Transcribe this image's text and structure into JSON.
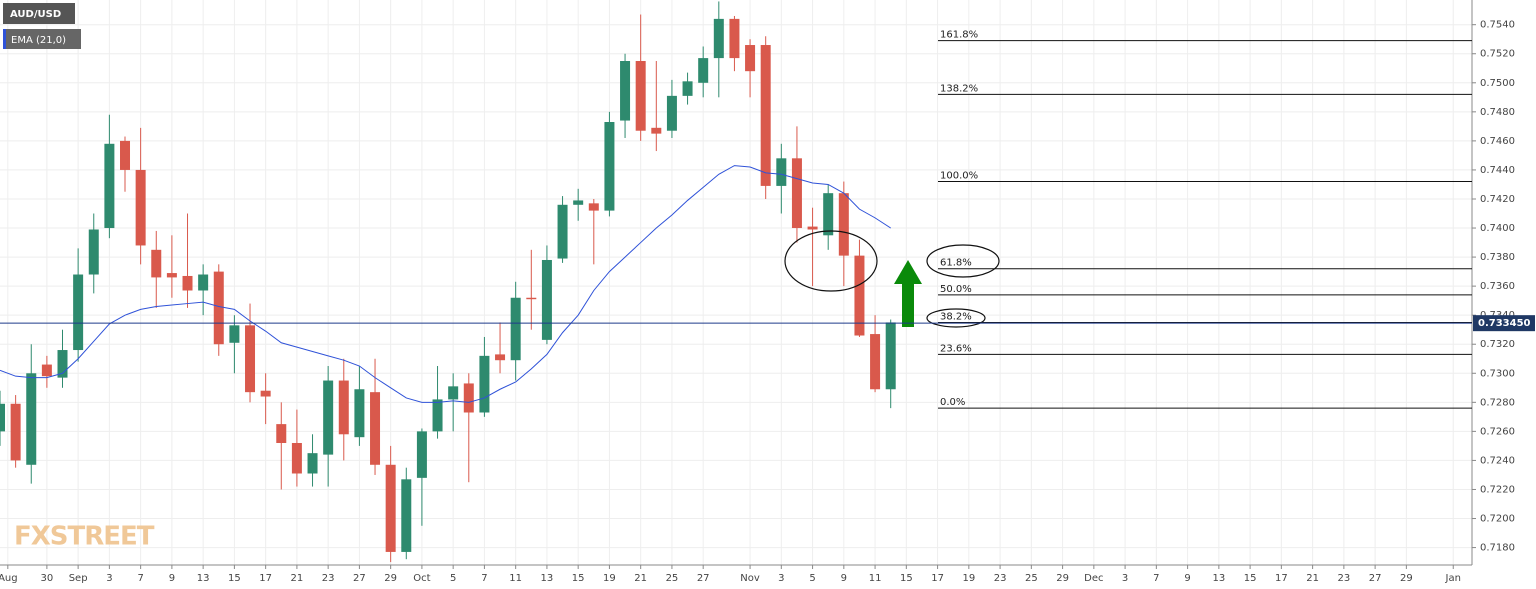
{
  "chart_data": {
    "type": "candlestick",
    "series": [
      {
        "name": "AUD/USD",
        "up_color": "#2e8a6e",
        "down_color": "#d9594c",
        "open": [
          0.726,
          0.7279,
          0.7237,
          0.7306,
          0.7297,
          0.7316,
          0.7368,
          0.74,
          0.746,
          0.744,
          0.7385,
          0.7369,
          0.7367,
          0.7357,
          0.737,
          0.7321,
          0.7333,
          0.7288,
          0.7265,
          0.7252,
          0.7231,
          0.7244,
          0.7295,
          0.7256,
          0.7287,
          0.7237,
          0.7177,
          0.7228,
          0.726,
          0.7282,
          0.7293,
          0.7273,
          0.7313,
          0.7309,
          0.7352,
          0.7323,
          0.7379,
          0.7416,
          0.7417,
          0.7412,
          0.7474,
          0.7515,
          0.7469,
          0.7467,
          0.7491,
          0.75,
          0.7517,
          0.7544,
          0.7526,
          0.7526,
          0.7429,
          0.7448,
          0.7401,
          0.7395,
          0.7424,
          0.7381,
          0.7327,
          0.7289
        ],
        "high": [
          0.7288,
          0.7285,
          0.732,
          0.7312,
          0.733,
          0.7386,
          0.741,
          0.7478,
          0.7463,
          0.7469,
          0.7398,
          0.7395,
          0.741,
          0.7375,
          0.7375,
          0.734,
          0.7348,
          0.73,
          0.728,
          0.7275,
          0.7258,
          0.7305,
          0.731,
          0.7305,
          0.731,
          0.725,
          0.7235,
          0.7262,
          0.7305,
          0.73,
          0.73,
          0.7325,
          0.7335,
          0.7363,
          0.7385,
          0.7388,
          0.7422,
          0.7427,
          0.742,
          0.748,
          0.752,
          0.7547,
          0.7515,
          0.7502,
          0.7507,
          0.7525,
          0.7556,
          0.7546,
          0.753,
          0.7532,
          0.7458,
          0.747,
          0.7414,
          0.743,
          0.7432,
          0.7392,
          0.734,
          0.7337
        ],
        "low": [
          0.725,
          0.7235,
          0.7224,
          0.729,
          0.729,
          0.7308,
          0.7355,
          0.7393,
          0.7425,
          0.7375,
          0.7345,
          0.7352,
          0.7345,
          0.734,
          0.7312,
          0.73,
          0.728,
          0.7265,
          0.722,
          0.7222,
          0.7222,
          0.7222,
          0.724,
          0.725,
          0.723,
          0.717,
          0.7172,
          0.7195,
          0.7255,
          0.726,
          0.7225,
          0.727,
          0.73,
          0.7295,
          0.733,
          0.732,
          0.7376,
          0.7405,
          0.7375,
          0.7408,
          0.7462,
          0.746,
          0.7453,
          0.7462,
          0.7485,
          0.749,
          0.749,
          0.7508,
          0.749,
          0.742,
          0.741,
          0.739,
          0.736,
          0.7385,
          0.736,
          0.7325,
          0.7287,
          0.7276
        ],
        "close": [
          0.7279,
          0.724,
          0.73,
          0.7298,
          0.7316,
          0.7368,
          0.7399,
          0.7458,
          0.744,
          0.7388,
          0.7366,
          0.7366,
          0.7357,
          0.7368,
          0.732,
          0.7333,
          0.7287,
          0.7284,
          0.7252,
          0.7231,
          0.7245,
          0.7295,
          0.7258,
          0.7289,
          0.7237,
          0.7177,
          0.7227,
          0.726,
          0.7282,
          0.7291,
          0.7273,
          0.7312,
          0.7309,
          0.7352,
          0.7351,
          0.7378,
          0.7416,
          0.7419,
          0.7412,
          0.7473,
          0.7515,
          0.7467,
          0.7465,
          0.7491,
          0.7501,
          0.7517,
          0.7544,
          0.7517,
          0.7508,
          0.7429,
          0.7448,
          0.74,
          0.7399,
          0.7424,
          0.7381,
          0.7326,
          0.7289,
          0.7335
        ]
      },
      {
        "name": "EMA (21,0)",
        "type": "line",
        "color": "#2f52d8",
        "values": [
          0.7302,
          0.7298,
          0.7297,
          0.7297,
          0.73,
          0.731,
          0.7322,
          0.7334,
          0.734,
          0.7344,
          0.7346,
          0.7347,
          0.7348,
          0.7349,
          0.7346,
          0.7344,
          0.7336,
          0.7329,
          0.7321,
          0.7318,
          0.7315,
          0.7312,
          0.7309,
          0.7305,
          0.7297,
          0.729,
          0.7283,
          0.728,
          0.728,
          0.7281,
          0.728,
          0.7283,
          0.7289,
          0.7294,
          0.7303,
          0.7313,
          0.7328,
          0.734,
          0.7357,
          0.737,
          0.738,
          0.739,
          0.74,
          0.7409,
          0.7419,
          0.7428,
          0.7437,
          0.7443,
          0.7442,
          0.7438,
          0.7437,
          0.7434,
          0.7431,
          0.743,
          0.7424,
          0.7413,
          0.7407,
          0.74
        ]
      }
    ],
    "xlim": [
      0,
      94.2
    ],
    "xticks": [
      {
        "value": 0.5,
        "label": "Aug"
      },
      {
        "value": 3,
        "label": "30"
      },
      {
        "value": 5,
        "label": "Sep"
      },
      {
        "value": 7,
        "label": "3"
      },
      {
        "value": 9,
        "label": "7"
      },
      {
        "value": 11,
        "label": "9"
      },
      {
        "value": 13,
        "label": "13"
      },
      {
        "value": 15,
        "label": "15"
      },
      {
        "value": 17,
        "label": "17"
      },
      {
        "value": 19,
        "label": "21"
      },
      {
        "value": 21,
        "label": "23"
      },
      {
        "value": 23,
        "label": "27"
      },
      {
        "value": 25,
        "label": "29"
      },
      {
        "value": 27,
        "label": "Oct"
      },
      {
        "value": 29,
        "label": "5"
      },
      {
        "value": 31,
        "label": "7"
      },
      {
        "value": 33,
        "label": "11"
      },
      {
        "value": 35,
        "label": "13"
      },
      {
        "value": 37,
        "label": "15"
      },
      {
        "value": 39,
        "label": "19"
      },
      {
        "value": 41,
        "label": "21"
      },
      {
        "value": 43,
        "label": "25"
      },
      {
        "value": 45,
        "label": "27"
      },
      {
        "value": 48,
        "label": "Nov"
      },
      {
        "value": 50,
        "label": "3"
      },
      {
        "value": 52,
        "label": "5"
      },
      {
        "value": 54,
        "label": "9"
      },
      {
        "value": 56,
        "label": "11"
      },
      {
        "value": 58,
        "label": "15"
      },
      {
        "value": 60,
        "label": "17"
      },
      {
        "value": 62,
        "label": "19"
      },
      {
        "value": 64,
        "label": "23"
      },
      {
        "value": 66,
        "label": "25"
      },
      {
        "value": 68,
        "label": "29"
      },
      {
        "value": 70,
        "label": "Dec"
      },
      {
        "value": 72,
        "label": "3"
      },
      {
        "value": 74,
        "label": "7"
      },
      {
        "value": 76,
        "label": "9"
      },
      {
        "value": 78,
        "label": "13"
      },
      {
        "value": 80,
        "label": "15"
      },
      {
        "value": 82,
        "label": "17"
      },
      {
        "value": 84,
        "label": "21"
      },
      {
        "value": 86,
        "label": "23"
      },
      {
        "value": 88,
        "label": "27"
      },
      {
        "value": 90,
        "label": "29"
      },
      {
        "value": 93,
        "label": "Jan"
      }
    ],
    "ylim": [
      0.7168,
      0.7557
    ],
    "yticks": [
      {
        "value": 0.718,
        "label": "0.7180"
      },
      {
        "value": 0.72,
        "label": "0.7200"
      },
      {
        "value": 0.722,
        "label": "0.7220"
      },
      {
        "value": 0.724,
        "label": "0.7240"
      },
      {
        "value": 0.726,
        "label": "0.7260"
      },
      {
        "value": 0.728,
        "label": "0.7280"
      },
      {
        "value": 0.73,
        "label": "0.7300"
      },
      {
        "value": 0.732,
        "label": "0.7320"
      },
      {
        "value": 0.734,
        "label": "0.7340"
      },
      {
        "value": 0.736,
        "label": "0.7360"
      },
      {
        "value": 0.738,
        "label": "0.7380"
      },
      {
        "value": 0.74,
        "label": "0.7400"
      },
      {
        "value": 0.742,
        "label": "0.7420"
      },
      {
        "value": 0.744,
        "label": "0.7440"
      },
      {
        "value": 0.746,
        "label": "0.7460"
      },
      {
        "value": 0.748,
        "label": "0.7480"
      },
      {
        "value": 0.75,
        "label": "0.7500"
      },
      {
        "value": 0.752,
        "label": "0.7520"
      },
      {
        "value": 0.754,
        "label": "0.7540"
      }
    ],
    "grid": true,
    "last_price": {
      "value": 0.73345,
      "label": "0.733450"
    },
    "fib_levels": [
      {
        "label": "161.8%",
        "value": 0.7529
      },
      {
        "label": "138.2%",
        "value": 0.7492
      },
      {
        "label": "100.0%",
        "value": 0.7432
      },
      {
        "label": "61.8%",
        "value": 0.7372
      },
      {
        "label": "50.0%",
        "value": 0.7354
      },
      {
        "label": "38.2%",
        "value": 0.7335
      },
      {
        "label": "23.6%",
        "value": 0.7313
      },
      {
        "label": "0.0%",
        "value": 0.7276
      }
    ],
    "watermark": "FXSTREET"
  }
}
